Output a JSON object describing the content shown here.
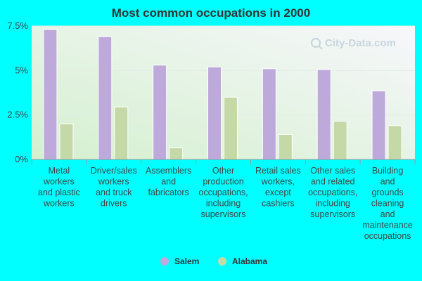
{
  "chart_data": {
    "type": "bar",
    "title": "Most common occupations in 2000",
    "categories": [
      [
        "Metal",
        "workers",
        "and plastic",
        "workers"
      ],
      [
        "Driver/sales",
        "workers",
        "and truck",
        "drivers"
      ],
      [
        "Assemblers",
        "and",
        "fabricators"
      ],
      [
        "Other",
        "production",
        "occupations,",
        "including",
        "supervisors"
      ],
      [
        "Retail sales",
        "workers,",
        "except",
        "cashiers"
      ],
      [
        "Other sales",
        "and related",
        "occupations,",
        "including",
        "supervisors"
      ],
      [
        "Building",
        "and",
        "grounds",
        "cleaning",
        "and",
        "maintenance",
        "occupations"
      ]
    ],
    "series": [
      {
        "name": "Salem",
        "color": "#bea9db",
        "values": [
          7.3,
          6.9,
          5.3,
          5.2,
          5.1,
          5.05,
          3.85
        ]
      },
      {
        "name": "Alabama",
        "color": "#c5d9a8",
        "values": [
          2.0,
          2.95,
          0.65,
          3.5,
          1.4,
          2.15,
          1.9
        ]
      }
    ],
    "ylim": [
      0,
      7.5
    ],
    "yticks": [
      0,
      2.5,
      5,
      7.5
    ],
    "ytick_labels": [
      "0%",
      "2.5%",
      "5%",
      "7.5%"
    ],
    "legend_position": "bottom",
    "grid": true,
    "watermark": "City-Data.com"
  }
}
